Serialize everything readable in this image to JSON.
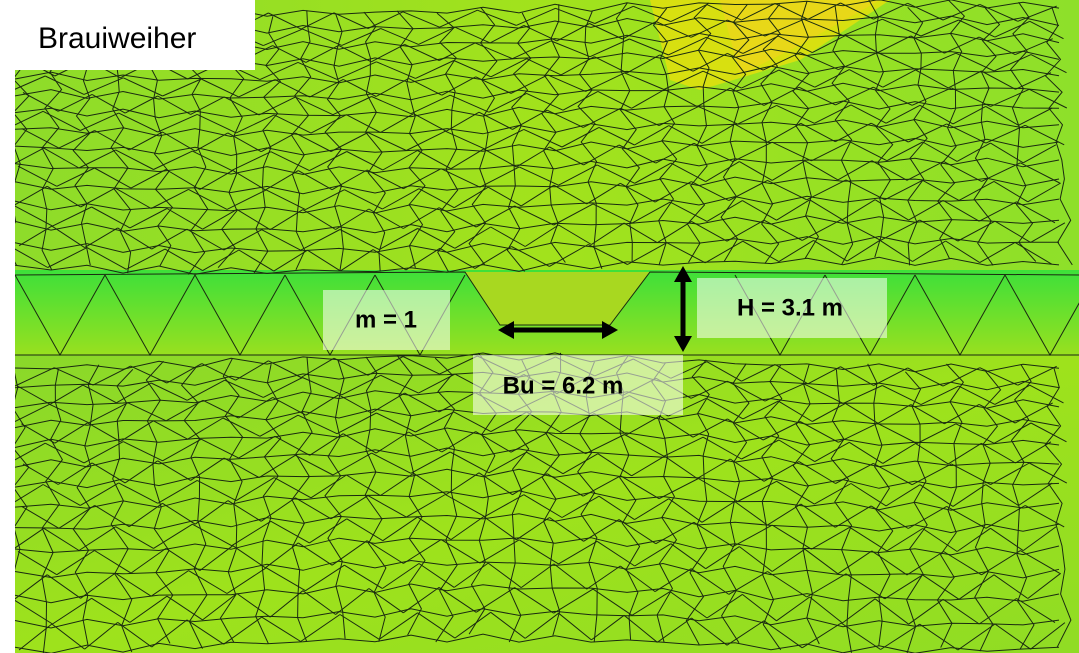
{
  "title": "Brauiweiher",
  "annotations": {
    "slope": "m = 1",
    "height": "H = 3.1 m",
    "bottom_width": "Bu = 6.2 m"
  }
}
